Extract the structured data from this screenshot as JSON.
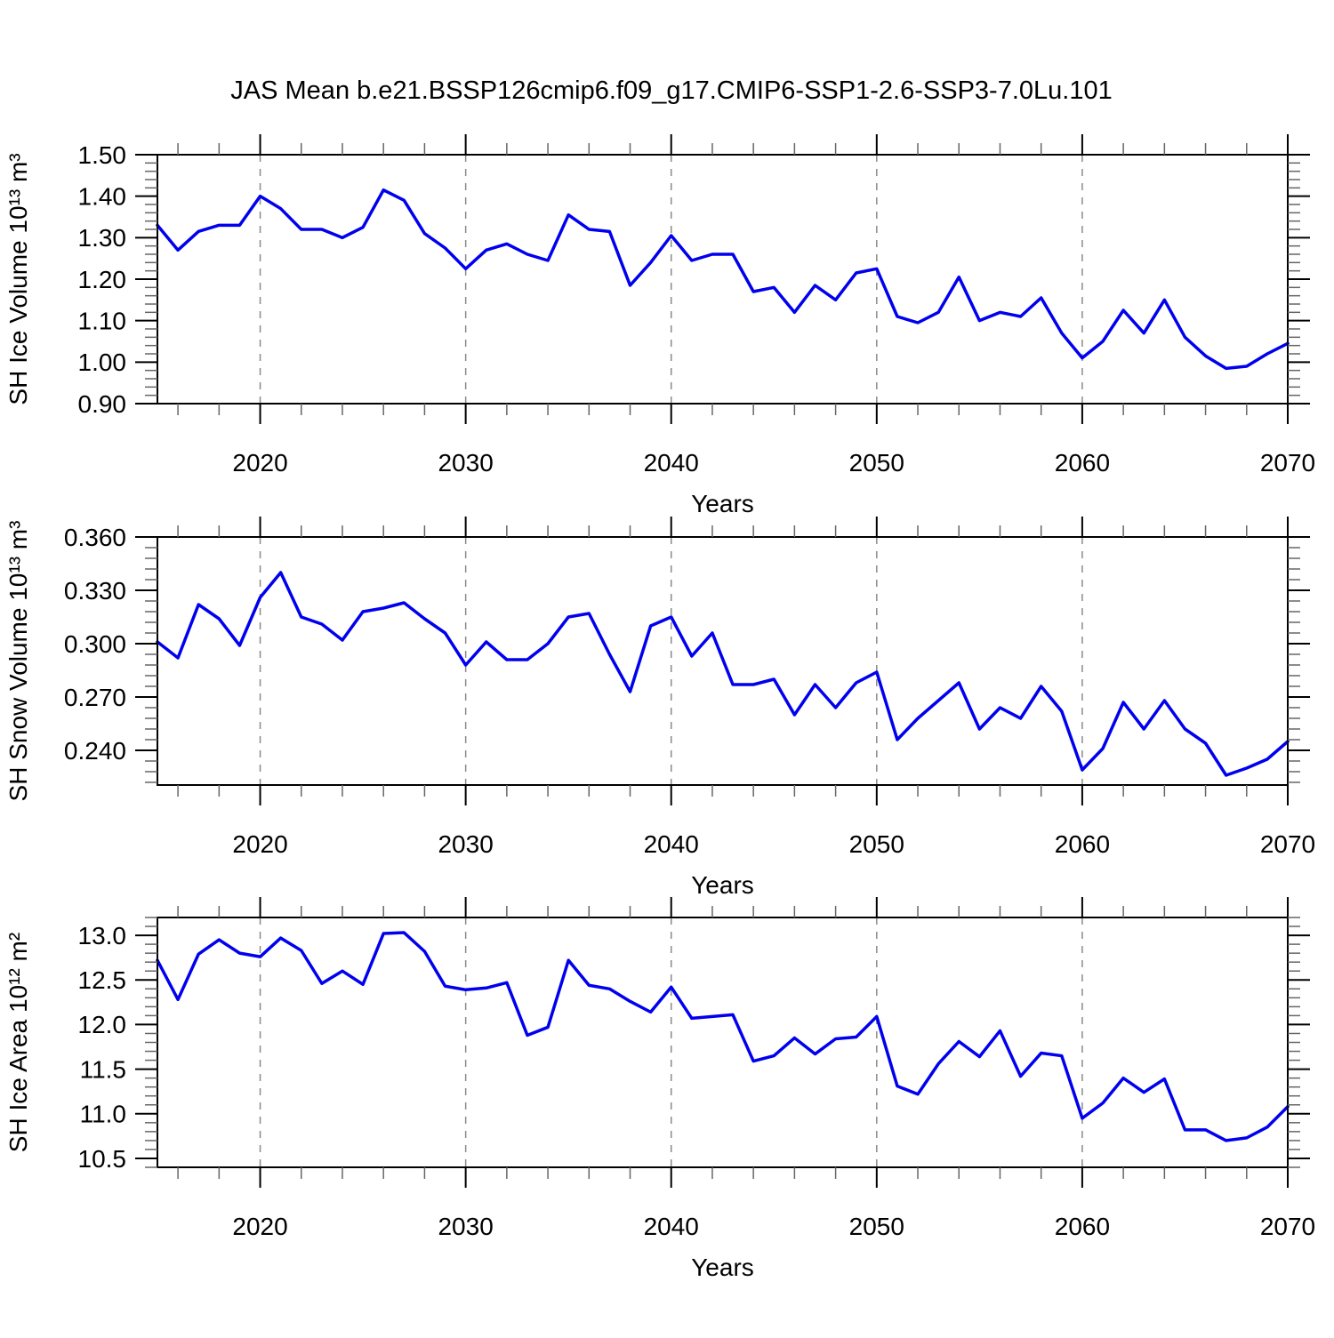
{
  "title": "JAS Mean b.e21.BSSP126cmip6.f09_g17.CMIP6-SSP1-2.6-SSP3-7.0Lu.101",
  "colors": {
    "line": "#0000ee",
    "grid": "#8a8a8a",
    "axis": "#000000",
    "minor_tick": "#666666",
    "background": "#ffffff"
  },
  "chart_data": [
    {
      "id": "ice-volume",
      "type": "line",
      "xlabel": "Years",
      "ylabel": "SH Ice Volume 10¹³ m³",
      "xlim": [
        2015,
        2070
      ],
      "ylim": [
        0.9,
        1.5
      ],
      "xticks": [
        2020,
        2030,
        2040,
        2050,
        2060,
        2070
      ],
      "xtick_labels": [
        "2020",
        "2030",
        "2040",
        "2050",
        "2060",
        "2070"
      ],
      "xminor_step": 2,
      "yticks": [
        0.9,
        1.0,
        1.1,
        1.2,
        1.3,
        1.4,
        1.5
      ],
      "ytick_labels": [
        "0.90",
        "1.00",
        "1.10",
        "1.20",
        "1.30",
        "1.40",
        "1.50"
      ],
      "yminor_step": 0.02,
      "grid_x": [
        2020,
        2030,
        2040,
        2050,
        2060
      ],
      "x": [
        2015,
        2016,
        2017,
        2018,
        2019,
        2020,
        2021,
        2022,
        2023,
        2024,
        2025,
        2026,
        2027,
        2028,
        2029,
        2030,
        2031,
        2032,
        2033,
        2034,
        2035,
        2036,
        2037,
        2038,
        2039,
        2040,
        2041,
        2042,
        2043,
        2044,
        2045,
        2046,
        2047,
        2048,
        2049,
        2050,
        2051,
        2052,
        2053,
        2054,
        2055,
        2056,
        2057,
        2058,
        2059,
        2060,
        2061,
        2062,
        2063,
        2064,
        2065,
        2066,
        2067,
        2068,
        2069,
        2070
      ],
      "values": [
        1.33,
        1.27,
        1.315,
        1.33,
        1.33,
        1.4,
        1.37,
        1.32,
        1.32,
        1.3,
        1.325,
        1.415,
        1.39,
        1.31,
        1.275,
        1.225,
        1.27,
        1.285,
        1.26,
        1.245,
        1.355,
        1.32,
        1.315,
        1.185,
        1.24,
        1.305,
        1.245,
        1.26,
        1.26,
        1.17,
        1.18,
        1.12,
        1.185,
        1.15,
        1.215,
        1.225,
        1.11,
        1.095,
        1.12,
        1.205,
        1.1,
        1.12,
        1.11,
        1.155,
        1.07,
        1.01,
        1.05,
        1.125,
        1.07,
        1.15,
        1.06,
        1.015,
        0.985,
        0.99,
        1.02,
        1.045
      ]
    },
    {
      "id": "snow-volume",
      "type": "line",
      "xlabel": "Years",
      "ylabel": "SH Snow Volume 10¹³ m³",
      "xlim": [
        2015,
        2070
      ],
      "ylim": [
        0.2205,
        0.36
      ],
      "xticks": [
        2020,
        2030,
        2040,
        2050,
        2060,
        2070
      ],
      "xtick_labels": [
        "2020",
        "2030",
        "2040",
        "2050",
        "2060",
        "2070"
      ],
      "xminor_step": 2,
      "yticks": [
        0.24,
        0.27,
        0.3,
        0.33,
        0.36
      ],
      "ytick_labels": [
        "0.240",
        "0.270",
        "0.300",
        "0.330",
        "0.360"
      ],
      "yminor_step": 0.006,
      "grid_x": [
        2020,
        2030,
        2040,
        2050,
        2060
      ],
      "x": [
        2015,
        2016,
        2017,
        2018,
        2019,
        2020,
        2021,
        2022,
        2023,
        2024,
        2025,
        2026,
        2027,
        2028,
        2029,
        2030,
        2031,
        2032,
        2033,
        2034,
        2035,
        2036,
        2037,
        2038,
        2039,
        2040,
        2041,
        2042,
        2043,
        2044,
        2045,
        2046,
        2047,
        2048,
        2049,
        2050,
        2051,
        2052,
        2053,
        2054,
        2055,
        2056,
        2057,
        2058,
        2059,
        2060,
        2061,
        2062,
        2063,
        2064,
        2065,
        2066,
        2067,
        2068,
        2069,
        2070
      ],
      "values": [
        0.301,
        0.292,
        0.322,
        0.314,
        0.299,
        0.326,
        0.34,
        0.315,
        0.311,
        0.302,
        0.318,
        0.32,
        0.323,
        0.314,
        0.306,
        0.288,
        0.301,
        0.291,
        0.291,
        0.3,
        0.315,
        0.317,
        0.294,
        0.273,
        0.31,
        0.315,
        0.293,
        0.306,
        0.277,
        0.277,
        0.28,
        0.26,
        0.277,
        0.264,
        0.278,
        0.284,
        0.246,
        0.258,
        0.268,
        0.278,
        0.252,
        0.264,
        0.258,
        0.276,
        0.262,
        0.229,
        0.241,
        0.267,
        0.252,
        0.268,
        0.252,
        0.244,
        0.226,
        0.23,
        0.235,
        0.245
      ]
    },
    {
      "id": "ice-area",
      "type": "line",
      "xlabel": "Years",
      "ylabel": "SH Ice Area 10¹² m²",
      "xlim": [
        2015,
        2070
      ],
      "ylim": [
        10.4,
        13.2
      ],
      "xticks": [
        2020,
        2030,
        2040,
        2050,
        2060,
        2070
      ],
      "xtick_labels": [
        "2020",
        "2030",
        "2040",
        "2050",
        "2060",
        "2070"
      ],
      "xminor_step": 2,
      "yticks": [
        10.5,
        11.0,
        11.5,
        12.0,
        12.5,
        13.0
      ],
      "ytick_labels": [
        "10.5",
        "11.0",
        "11.5",
        "12.0",
        "12.5",
        "13.0"
      ],
      "yminor_step": 0.1,
      "grid_x": [
        2020,
        2030,
        2040,
        2050,
        2060
      ],
      "x": [
        2015,
        2016,
        2017,
        2018,
        2019,
        2020,
        2021,
        2022,
        2023,
        2024,
        2025,
        2026,
        2027,
        2028,
        2029,
        2030,
        2031,
        2032,
        2033,
        2034,
        2035,
        2036,
        2037,
        2038,
        2039,
        2040,
        2041,
        2042,
        2043,
        2044,
        2045,
        2046,
        2047,
        2048,
        2049,
        2050,
        2051,
        2052,
        2053,
        2054,
        2055,
        2056,
        2057,
        2058,
        2059,
        2060,
        2061,
        2062,
        2063,
        2064,
        2065,
        2066,
        2067,
        2068,
        2069,
        2070
      ],
      "values": [
        12.72,
        12.28,
        12.79,
        12.95,
        12.8,
        12.76,
        12.97,
        12.83,
        12.46,
        12.6,
        12.45,
        13.02,
        13.03,
        12.82,
        12.43,
        12.39,
        12.41,
        12.47,
        11.88,
        11.97,
        12.72,
        12.44,
        12.4,
        12.26,
        12.14,
        12.42,
        12.07,
        12.09,
        12.11,
        11.59,
        11.65,
        11.85,
        11.67,
        11.84,
        11.86,
        12.09,
        11.31,
        11.22,
        11.56,
        11.81,
        11.64,
        11.93,
        11.42,
        11.68,
        11.65,
        10.95,
        11.12,
        11.4,
        11.24,
        11.39,
        10.82,
        10.82,
        10.7,
        10.73,
        10.85,
        11.08
      ]
    }
  ]
}
